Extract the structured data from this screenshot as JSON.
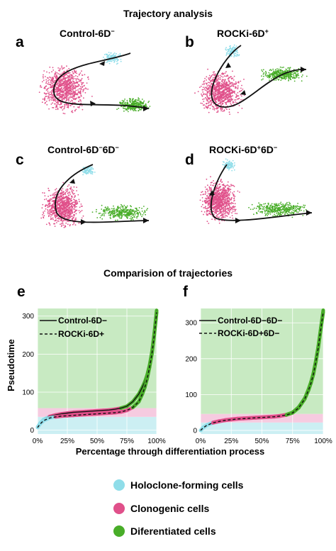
{
  "figure": {
    "title_top": "Trajectory analysis",
    "title_bottom": "Comparision of trajectories"
  },
  "colors": {
    "holoclone": "#8fdde9",
    "clonogenic": "#e0508a",
    "differentiated": "#48ad28",
    "band_holoclone": "#cceff3",
    "band_clonogenic": "#f6cbe0",
    "band_differentiated": "#c8eac2",
    "trajectory": "#111111"
  },
  "umap_panels": [
    {
      "letter": "a",
      "title_main": "Control-6D",
      "title_sup": "−"
    },
    {
      "letter": "b",
      "title_main": "ROCKi-6D",
      "title_sup": "+"
    },
    {
      "letter": "c",
      "title_main": "Control-6D",
      "title_sup": "−",
      "title_main2": "6D",
      "title_sup2": "−"
    },
    {
      "letter": "d",
      "title_main": "ROCKi-6D",
      "title_sup": "+",
      "title_main2": "6D",
      "title_sup2": "−"
    }
  ],
  "chart_data": [
    {
      "type": "line",
      "panel": "e",
      "xlabel": "Percentage through differentiation process",
      "ylabel": "Pseudotime",
      "xlim": [
        0,
        100
      ],
      "ylim": [
        -10,
        320
      ],
      "x_ticks": [
        "0%",
        "25%",
        "50%",
        "75%",
        "100%"
      ],
      "y_ticks": [
        "0",
        "100",
        "200",
        "300"
      ],
      "bands": [
        {
          "name": "Holoclone-forming cells",
          "from": -10,
          "to": 35
        },
        {
          "name": "Clonogenic cells",
          "from": 35,
          "to": 58
        },
        {
          "name": "Diferentiated cells",
          "from": 58,
          "to": 320
        }
      ],
      "x": [
        0,
        2,
        5,
        10,
        15,
        20,
        25,
        30,
        35,
        40,
        45,
        50,
        55,
        60,
        65,
        70,
        75,
        80,
        85,
        88,
        90,
        92,
        94,
        96,
        98,
        100
      ],
      "series": [
        {
          "name": "Control-6D−",
          "style": "solid",
          "values": [
            8,
            18,
            28,
            36,
            40,
            43,
            45,
            47,
            48,
            49,
            50,
            51,
            52,
            53,
            55,
            58,
            63,
            75,
            95,
            113,
            127,
            145,
            170,
            205,
            255,
            315
          ]
        },
        {
          "name": "ROCKi-6D+",
          "style": "dashed",
          "values": [
            7,
            16,
            25,
            32,
            35,
            37,
            38,
            39,
            40,
            41,
            42,
            43,
            44,
            45,
            46,
            48,
            52,
            60,
            75,
            95,
            112,
            135,
            165,
            200,
            250,
            310
          ]
        }
      ],
      "legend_position": "top-left"
    },
    {
      "type": "line",
      "panel": "f",
      "xlabel": "Percentage through differentiation process",
      "ylabel": "",
      "xlim": [
        0,
        100
      ],
      "ylim": [
        -10,
        340
      ],
      "x_ticks": [
        "0%",
        "25%",
        "50%",
        "75%",
        "100%"
      ],
      "y_ticks": [
        "0",
        "100",
        "200",
        "300"
      ],
      "bands": [
        {
          "name": "Holoclone-forming cells",
          "from": -10,
          "to": 22
        },
        {
          "name": "Clonogenic cells",
          "from": 22,
          "to": 46
        },
        {
          "name": "Diferentiated cells",
          "from": 46,
          "to": 340
        }
      ],
      "x": [
        0,
        2,
        5,
        10,
        15,
        20,
        25,
        30,
        35,
        40,
        45,
        50,
        55,
        60,
        65,
        70,
        75,
        80,
        85,
        88,
        90,
        92,
        94,
        96,
        98,
        100
      ],
      "series": [
        {
          "name": "Control-6D−6D−",
          "style": "solid",
          "values": [
            0,
            8,
            15,
            22,
            26,
            29,
            31,
            33,
            34,
            35,
            36,
            37,
            38,
            39,
            41,
            44,
            50,
            65,
            90,
            115,
            135,
            160,
            195,
            235,
            285,
            335
          ]
        },
        {
          "name": "ROCKi-6D+6D−",
          "style": "dashed",
          "values": [
            0,
            7,
            14,
            21,
            25,
            28,
            30,
            32,
            33,
            34,
            35,
            36,
            37,
            38,
            40,
            43,
            49,
            63,
            88,
            112,
            132,
            157,
            192,
            232,
            282,
            330
          ]
        }
      ],
      "legend_position": "top-left"
    }
  ],
  "key": [
    {
      "label": "Holoclone-forming cells",
      "color": "#8fdde9"
    },
    {
      "label": "Clonogenic cells",
      "color": "#e0508a"
    },
    {
      "label": "Diferentiated cells",
      "color": "#48ad28"
    }
  ]
}
